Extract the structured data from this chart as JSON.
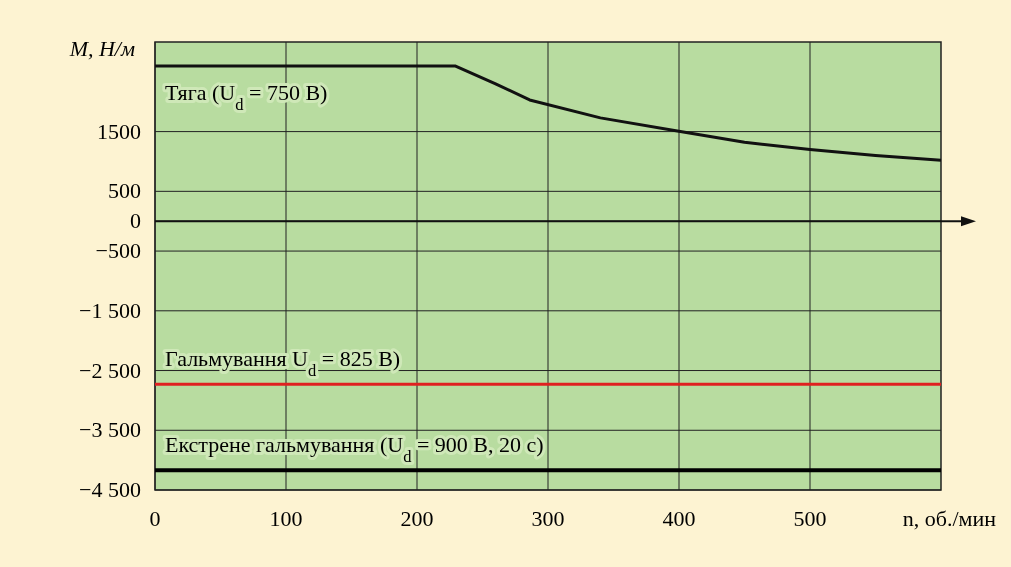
{
  "chart_data": {
    "type": "line",
    "ylabel": "M, Н/м",
    "xlabel": "n, об./мин",
    "xlim": [
      0,
      600
    ],
    "xticks": [
      0,
      100,
      200,
      300,
      400,
      500
    ],
    "ylim": [
      -4500,
      3000
    ],
    "yticks": [
      1500,
      500,
      0,
      {
        "value": -500,
        "label": "−500"
      },
      {
        "value": -1500,
        "label": "−1 500"
      },
      {
        "value": -2500,
        "label": "−2 500"
      },
      {
        "value": -3500,
        "label": "−3 500"
      },
      {
        "value": -4500,
        "label": "−4 500"
      }
    ],
    "grid": true,
    "series": [
      {
        "name": "Тяга (U$_{d}$ = 750 В)",
        "color": "#111111",
        "x": [
          0,
          229,
          260,
          286,
          340,
          401,
          450,
          500,
          550,
          600
        ],
        "values": [
          2600,
          2600,
          2300,
          2030,
          1730,
          1500,
          1320,
          1200,
          1100,
          1020
        ]
      },
      {
        "name": "Гальмування  U$_{d}$ = 825 В)",
        "color": "#e02020",
        "x": [
          0,
          600
        ],
        "values": [
          -2730,
          -2730
        ]
      },
      {
        "name": "Екстрене  гальмування   (U$_{d}$ = 900 В, 20 с)",
        "color": "#000000",
        "x": [
          0,
          600
        ],
        "values": [
          -4170,
          -4170
        ]
      }
    ]
  }
}
